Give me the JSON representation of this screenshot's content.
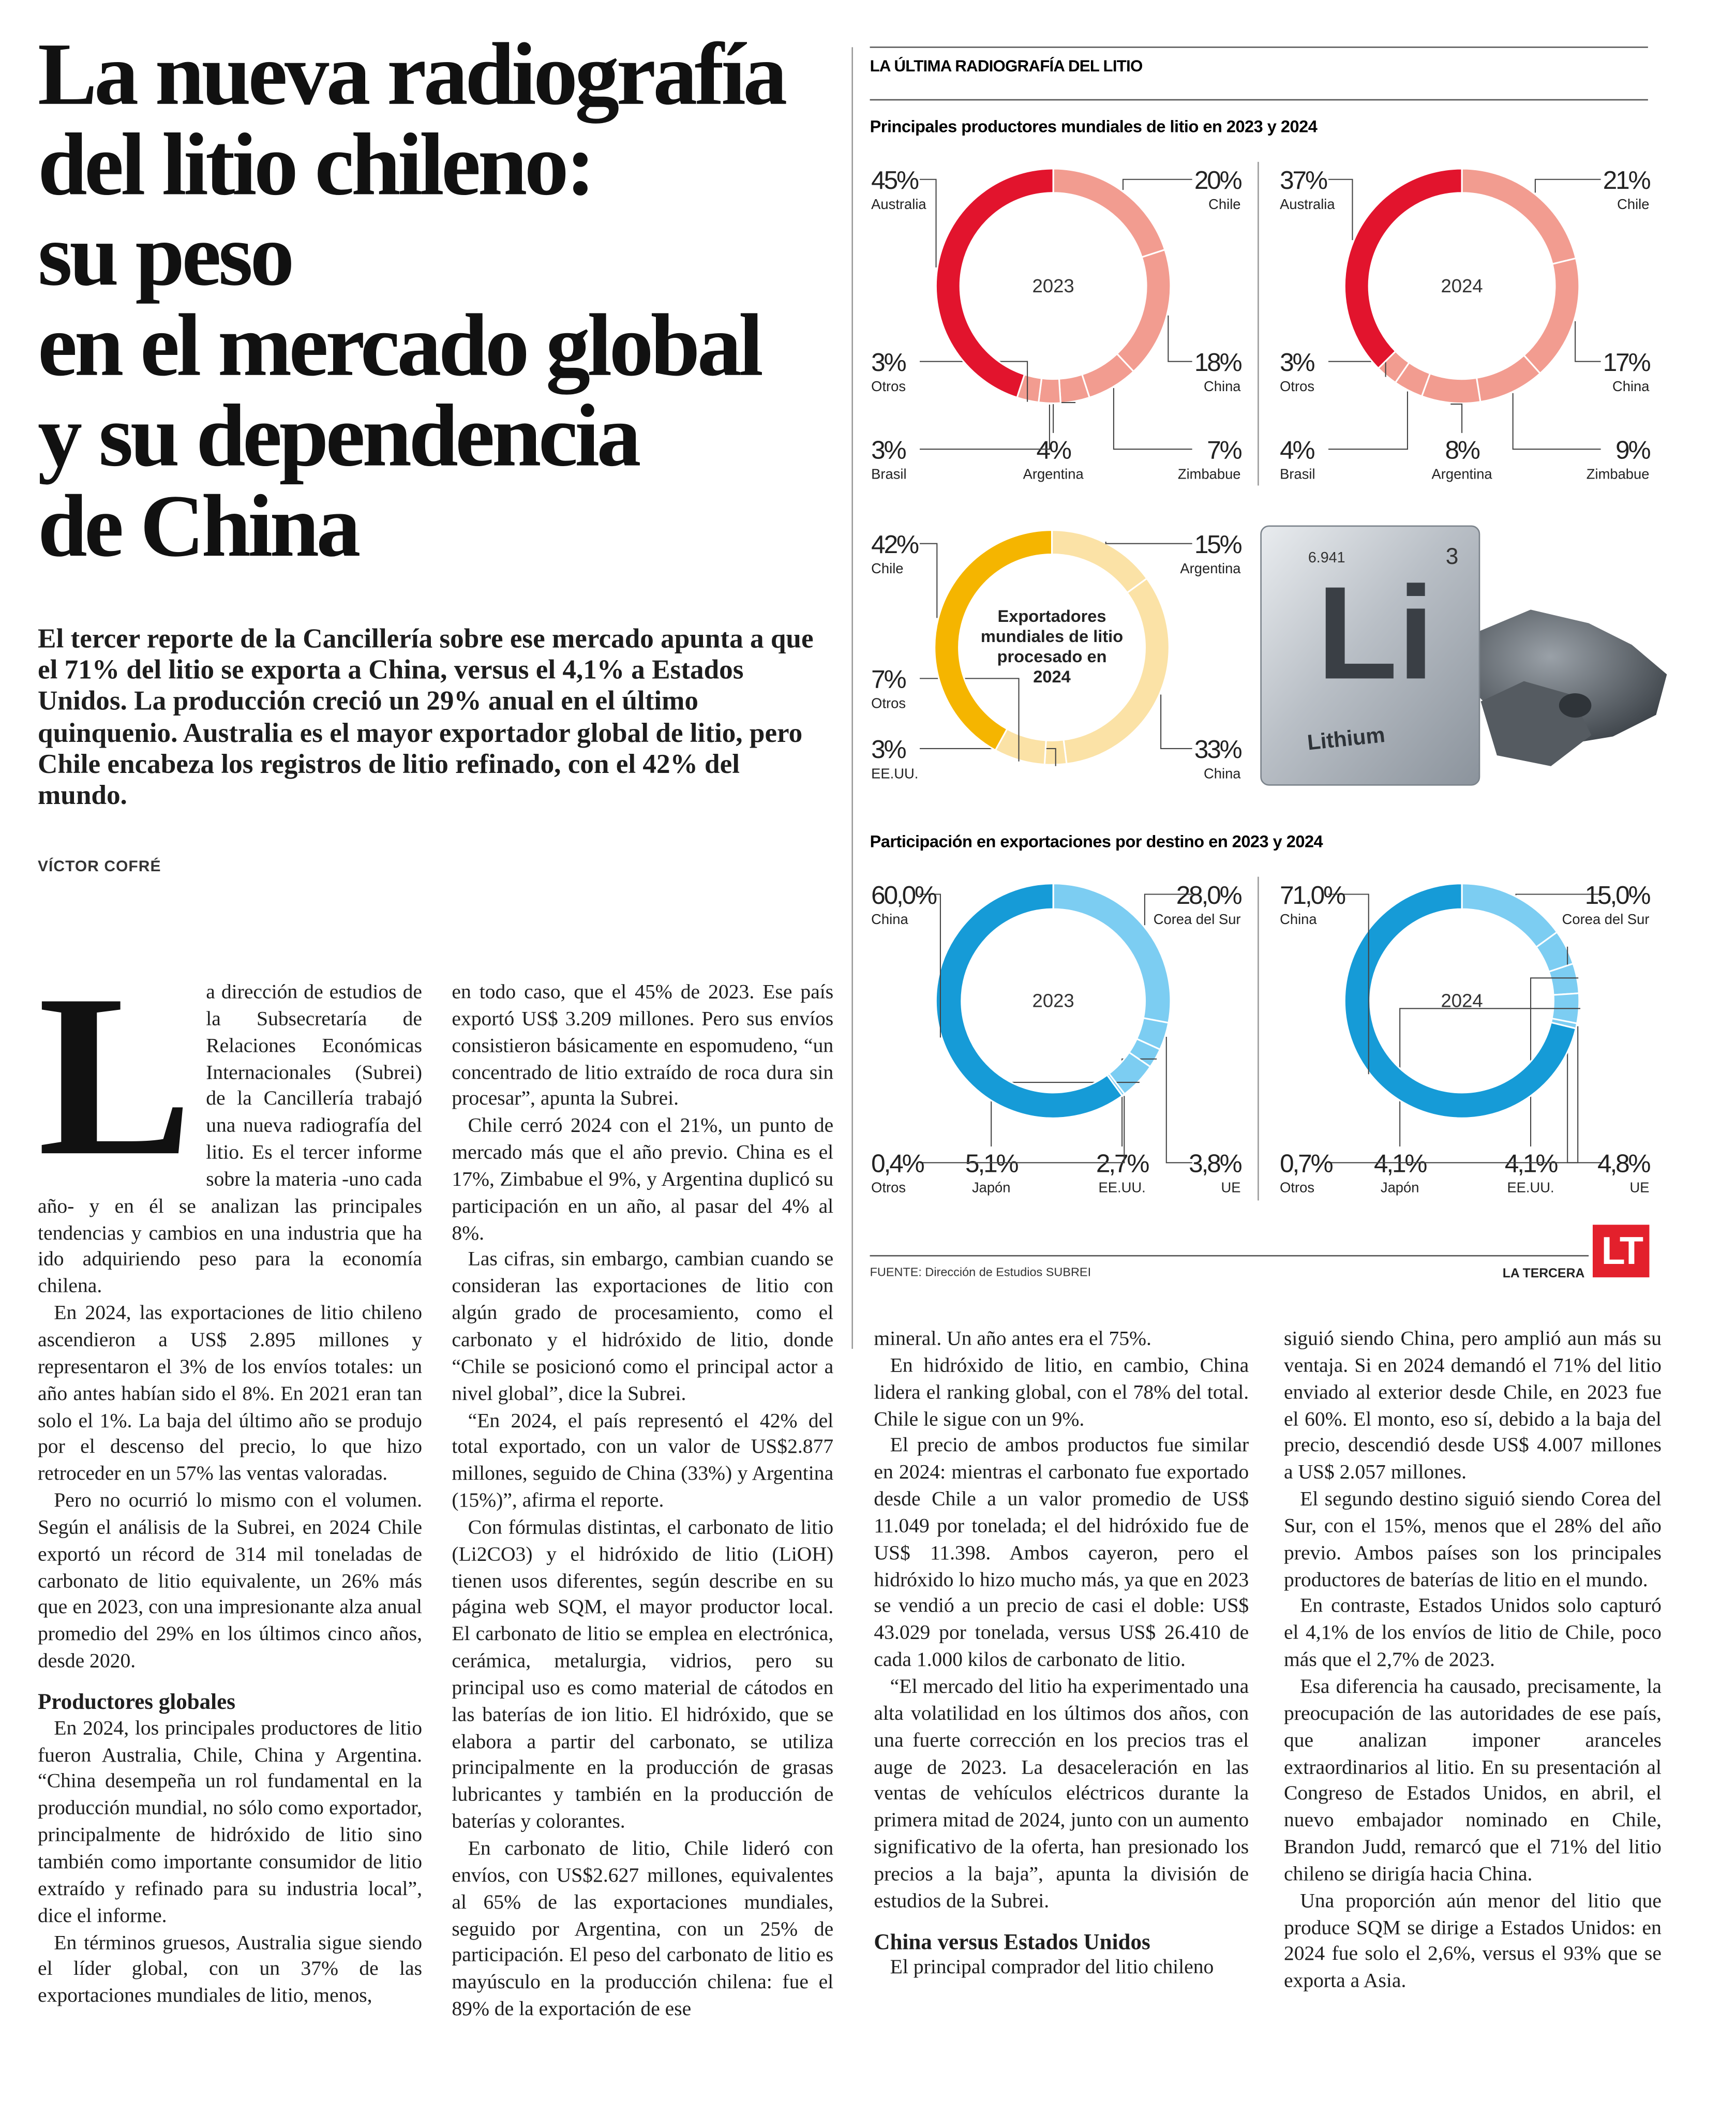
{
  "headline": {
    "lines": [
      "La nueva radiografía",
      "del litio chileno:",
      "su peso",
      "en el mercado global",
      "y su dependencia",
      "de China"
    ]
  },
  "deck": "El tercer reporte de la Cancillería sobre ese mercado apunta a que el 71% del litio se exporta a China, versus el 4,1% a Estados Unidos. La producción creció un 29% anual en el último quinquenio. Australia es el mayor exportador global de litio, pero Chile encabeza los registros de litio refinado, con el 42% del mundo.",
  "byline": "VÍCTOR COFRÉ",
  "article": {
    "columns": [
      [
        {
          "drop_cap": "L",
          "p": "a dirección de estudios de la Subsecretaría de Relaciones Económicas Internacionales (Subrei) de la Cancillería trabajó una nueva radiografía del litio. Es el tercer informe sobre la materia -uno cada año- y en él se analizan las principales tendencias y cambios en una industria que ha ido adquiriendo peso para la economía chilena."
        },
        {
          "p": "En 2024, las exportaciones de litio chileno ascendieron a US$ 2.895 millones y representaron el 3% de los envíos totales: un año antes habían sido el 8%. En 2021 eran tan solo el 1%. La baja del último año se produjo por el descenso del precio, lo que hizo retroceder en un 57% las ventas valoradas."
        },
        {
          "p": "Pero no ocurrió lo mismo con el volumen. Según el análisis de la Subrei, en 2024 Chile exportó un récord de 314 mil toneladas de carbonato de litio equivalente, un 26% más que en 2023, con una impresionante alza anual promedio del 29% en los últimos cinco años, desde 2020."
        },
        {
          "h": "Productores globales"
        },
        {
          "p": "En 2024, los principales productores de litio fueron Australia, Chile, China y Argentina. “China desempeña un rol fundamental en la producción mundial, no sólo como exportador, principalmente de hidróxido de litio sino también como importante consumidor de litio extraído y refinado para su industria local”, dice el informe."
        },
        {
          "p": "En términos gruesos, Australia sigue siendo el líder global, con un 37% de las exportaciones mundiales de litio, menos,"
        }
      ],
      [
        {
          "p": "en todo caso, que el 45% de 2023. Ese país exportó US$ 3.209 millones. Pero sus envíos consistieron básicamente en espomudeno, “un concentrado de litio extraído de roca dura sin procesar”, apunta la Subrei."
        },
        {
          "p": "Chile cerró 2024 con el 21%, un punto de mercado más que el año previo. China es el 17%, Zimbabue el 9%, y Argentina duplicó su participación en un año, al pasar del 4% al 8%."
        },
        {
          "p": "Las cifras, sin embargo, cambian cuando se consideran las exportaciones de litio con algún grado de procesamiento, como el carbonato y el hidróxido de litio, donde “Chile se posicionó como el principal actor a nivel global”, dice la Subrei."
        },
        {
          "p": "“En 2024, el país representó el 42% del total exportado, con un valor de US$2.877 millones, seguido de China (33%) y Argentina (15%)”, afirma el reporte."
        },
        {
          "p": "Con fórmulas distintas, el carbonato de litio (Li2CO3) y el hidróxido de litio (LiOH) tienen usos diferentes, según describe en su página web SQM, el mayor productor local. El carbonato de litio se emplea en electrónica, cerámica, metalurgia, vidrios, pero su principal uso es como material de cátodos en las baterías de ion litio. El hidróxido, que se elabora a partir del carbonato, se utiliza principalmente en la producción de grasas lubricantes y también en la producción de baterías y colorantes."
        },
        {
          "p": "En carbonato de litio, Chile lideró con envíos, con US$2.627 millones, equivalentes al 65% de las exportaciones mundiales, seguido por Argentina, con un 25% de participación. El peso del carbonato de litio es mayúsculo en la producción chilena: fue el 89% de la exportación de ese"
        }
      ],
      [
        {
          "p": "mineral. Un año antes era el 75%."
        },
        {
          "p": "En hidróxido de litio, en cambio, China lidera el ranking global, con el 78% del total. Chile le sigue con un 9%."
        },
        {
          "p": "El precio de ambos productos fue similar en 2024: mientras el carbonato fue exportado desde Chile a un valor promedio de US$ 11.049 por tonelada; el del hidróxido fue de US$ 11.398. Ambos cayeron, pero el hidróxido lo hizo mucho más, ya que en 2023 se vendió a un precio de casi el doble: US$ 43.029 por tonelada, versus US$ 26.410 de cada 1.000 kilos de carbonato de litio."
        },
        {
          "p": "“El mercado del litio ha experimentado una alta volatilidad en los últimos dos años, con una fuerte corrección en los precios tras el auge de 2023. La desaceleración en las ventas de vehículos eléctricos durante la primera mitad de 2024, junto con un aumento significativo de la oferta, han presionado los precios a la baja”, apunta la división de estudios de la Subrei."
        },
        {
          "h": "China versus Estados Unidos"
        },
        {
          "p": "El principal comprador del litio chileno"
        }
      ],
      [
        {
          "p": "siguió siendo China, pero amplió aun más su ventaja. Si en 2024 demandó el 71% del litio enviado al exterior desde Chile, en 2023 fue el 60%. El monto, eso sí, debido a la baja del precio, descendió desde US$ 4.007 millones a US$ 2.057 millones."
        },
        {
          "p": "El segundo destino siguió siendo Corea del Sur, con el 15%, menos que el 28% del año previo. Ambos países son los principales productores de baterías de litio en el mundo."
        },
        {
          "p": "En contraste, Estados Unidos solo capturó el 4,1% de los envíos de litio de Chile, poco más que el 2,7% de 2023."
        },
        {
          "p": "Esa diferencia ha causado, precisamente, la preocupación de las autoridades de ese país, que analizan imponer aranceles extraordinarios al litio. En su presentación al Congreso de Estados Unidos, en abril, el nuevo embajador nominado en Chile, Brandon Judd, remarcó que el 71% del litio chileno se dirigía hacia China."
        },
        {
          "p": "Una proporción aún menor del litio que produce SQM se dirige a Estados Unidos: en 2024 fue solo el 2,6%, versus el 93% que se exporta a Asia."
        }
      ]
    ]
  },
  "infographic": {
    "section": "LA ÚLTIMA RADIOGRAFÍA DEL LITIO",
    "subtitle_producers": "Principales productores mundiales de litio en 2023 y 2024",
    "subtitle_destinations": "Participación en exportaciones por destino en 2023 y 2024",
    "element": {
      "mass": "6.941",
      "number": "3",
      "symbol": "Li",
      "name": "Lithium"
    },
    "source": "FUENTE: Dirección de Estudios SUBREI",
    "brand": "LA TERCERA",
    "logo": "LT"
  },
  "chart_data": [
    {
      "type": "pie",
      "donut": true,
      "title": "2023",
      "categories": [
        "Chile",
        "China",
        "Zimbabue",
        "Argentina",
        "Brasil",
        "Otros",
        "Australia"
      ],
      "values": [
        20,
        18,
        7,
        4,
        3,
        3,
        45
      ],
      "value_labels": [
        "20%",
        "18%",
        "7%",
        "4%",
        "3%",
        "3%",
        "45%"
      ],
      "colors": [
        "#f29c90",
        "#f29c90",
        "#f29c90",
        "#f29c90",
        "#f29c90",
        "#f29c90",
        "#e2142d"
      ]
    },
    {
      "type": "pie",
      "donut": true,
      "title": "2024",
      "categories": [
        "Chile",
        "China",
        "Zimbabue",
        "Argentina",
        "Brasil",
        "Otros",
        "Australia"
      ],
      "values": [
        21,
        17,
        9,
        8,
        4,
        3,
        37
      ],
      "value_labels": [
        "21%",
        "17%",
        "9%",
        "8%",
        "4%",
        "3%",
        "37%"
      ],
      "colors": [
        "#f29c90",
        "#f29c90",
        "#f29c90",
        "#f29c90",
        "#f29c90",
        "#f29c90",
        "#e2142d"
      ]
    },
    {
      "type": "pie",
      "donut": true,
      "title": "Exportadores mundiales de litio procesado en 2024",
      "categories": [
        "Argentina",
        "China",
        "EE.UU.",
        "Otros",
        "Chile"
      ],
      "values": [
        15,
        33,
        3,
        7,
        42
      ],
      "value_labels": [
        "15%",
        "33%",
        "3%",
        "7%",
        "42%"
      ],
      "colors": [
        "#fbe2a6",
        "#fbe2a6",
        "#fbe2a6",
        "#fbe2a6",
        "#f5b500"
      ]
    },
    {
      "type": "pie",
      "donut": true,
      "title": "2023",
      "categories": [
        "Corea del Sur",
        "UE",
        "EE.UU.",
        "Japón",
        "Otros",
        "China"
      ],
      "values": [
        28.0,
        3.8,
        2.7,
        5.1,
        0.4,
        60.0
      ],
      "value_labels": [
        "28,0%",
        "3,8%",
        "2,7%",
        "5,1%",
        "0,4%",
        "60,0%"
      ],
      "colors": [
        "#7ccdf2",
        "#7ccdf2",
        "#7ccdf2",
        "#7ccdf2",
        "#7ccdf2",
        "#169bd7"
      ]
    },
    {
      "type": "pie",
      "donut": true,
      "title": "2024",
      "categories": [
        "Corea del Sur",
        "UE",
        "EE.UU.",
        "Japón",
        "Otros",
        "China"
      ],
      "values": [
        15.0,
        4.8,
        4.1,
        4.1,
        0.7,
        71.0
      ],
      "value_labels": [
        "15,0%",
        "4,8%",
        "4,1%",
        "4,1%",
        "0,7%",
        "71,0%"
      ],
      "colors": [
        "#7ccdf2",
        "#7ccdf2",
        "#7ccdf2",
        "#7ccdf2",
        "#7ccdf2",
        "#169bd7"
      ]
    }
  ]
}
